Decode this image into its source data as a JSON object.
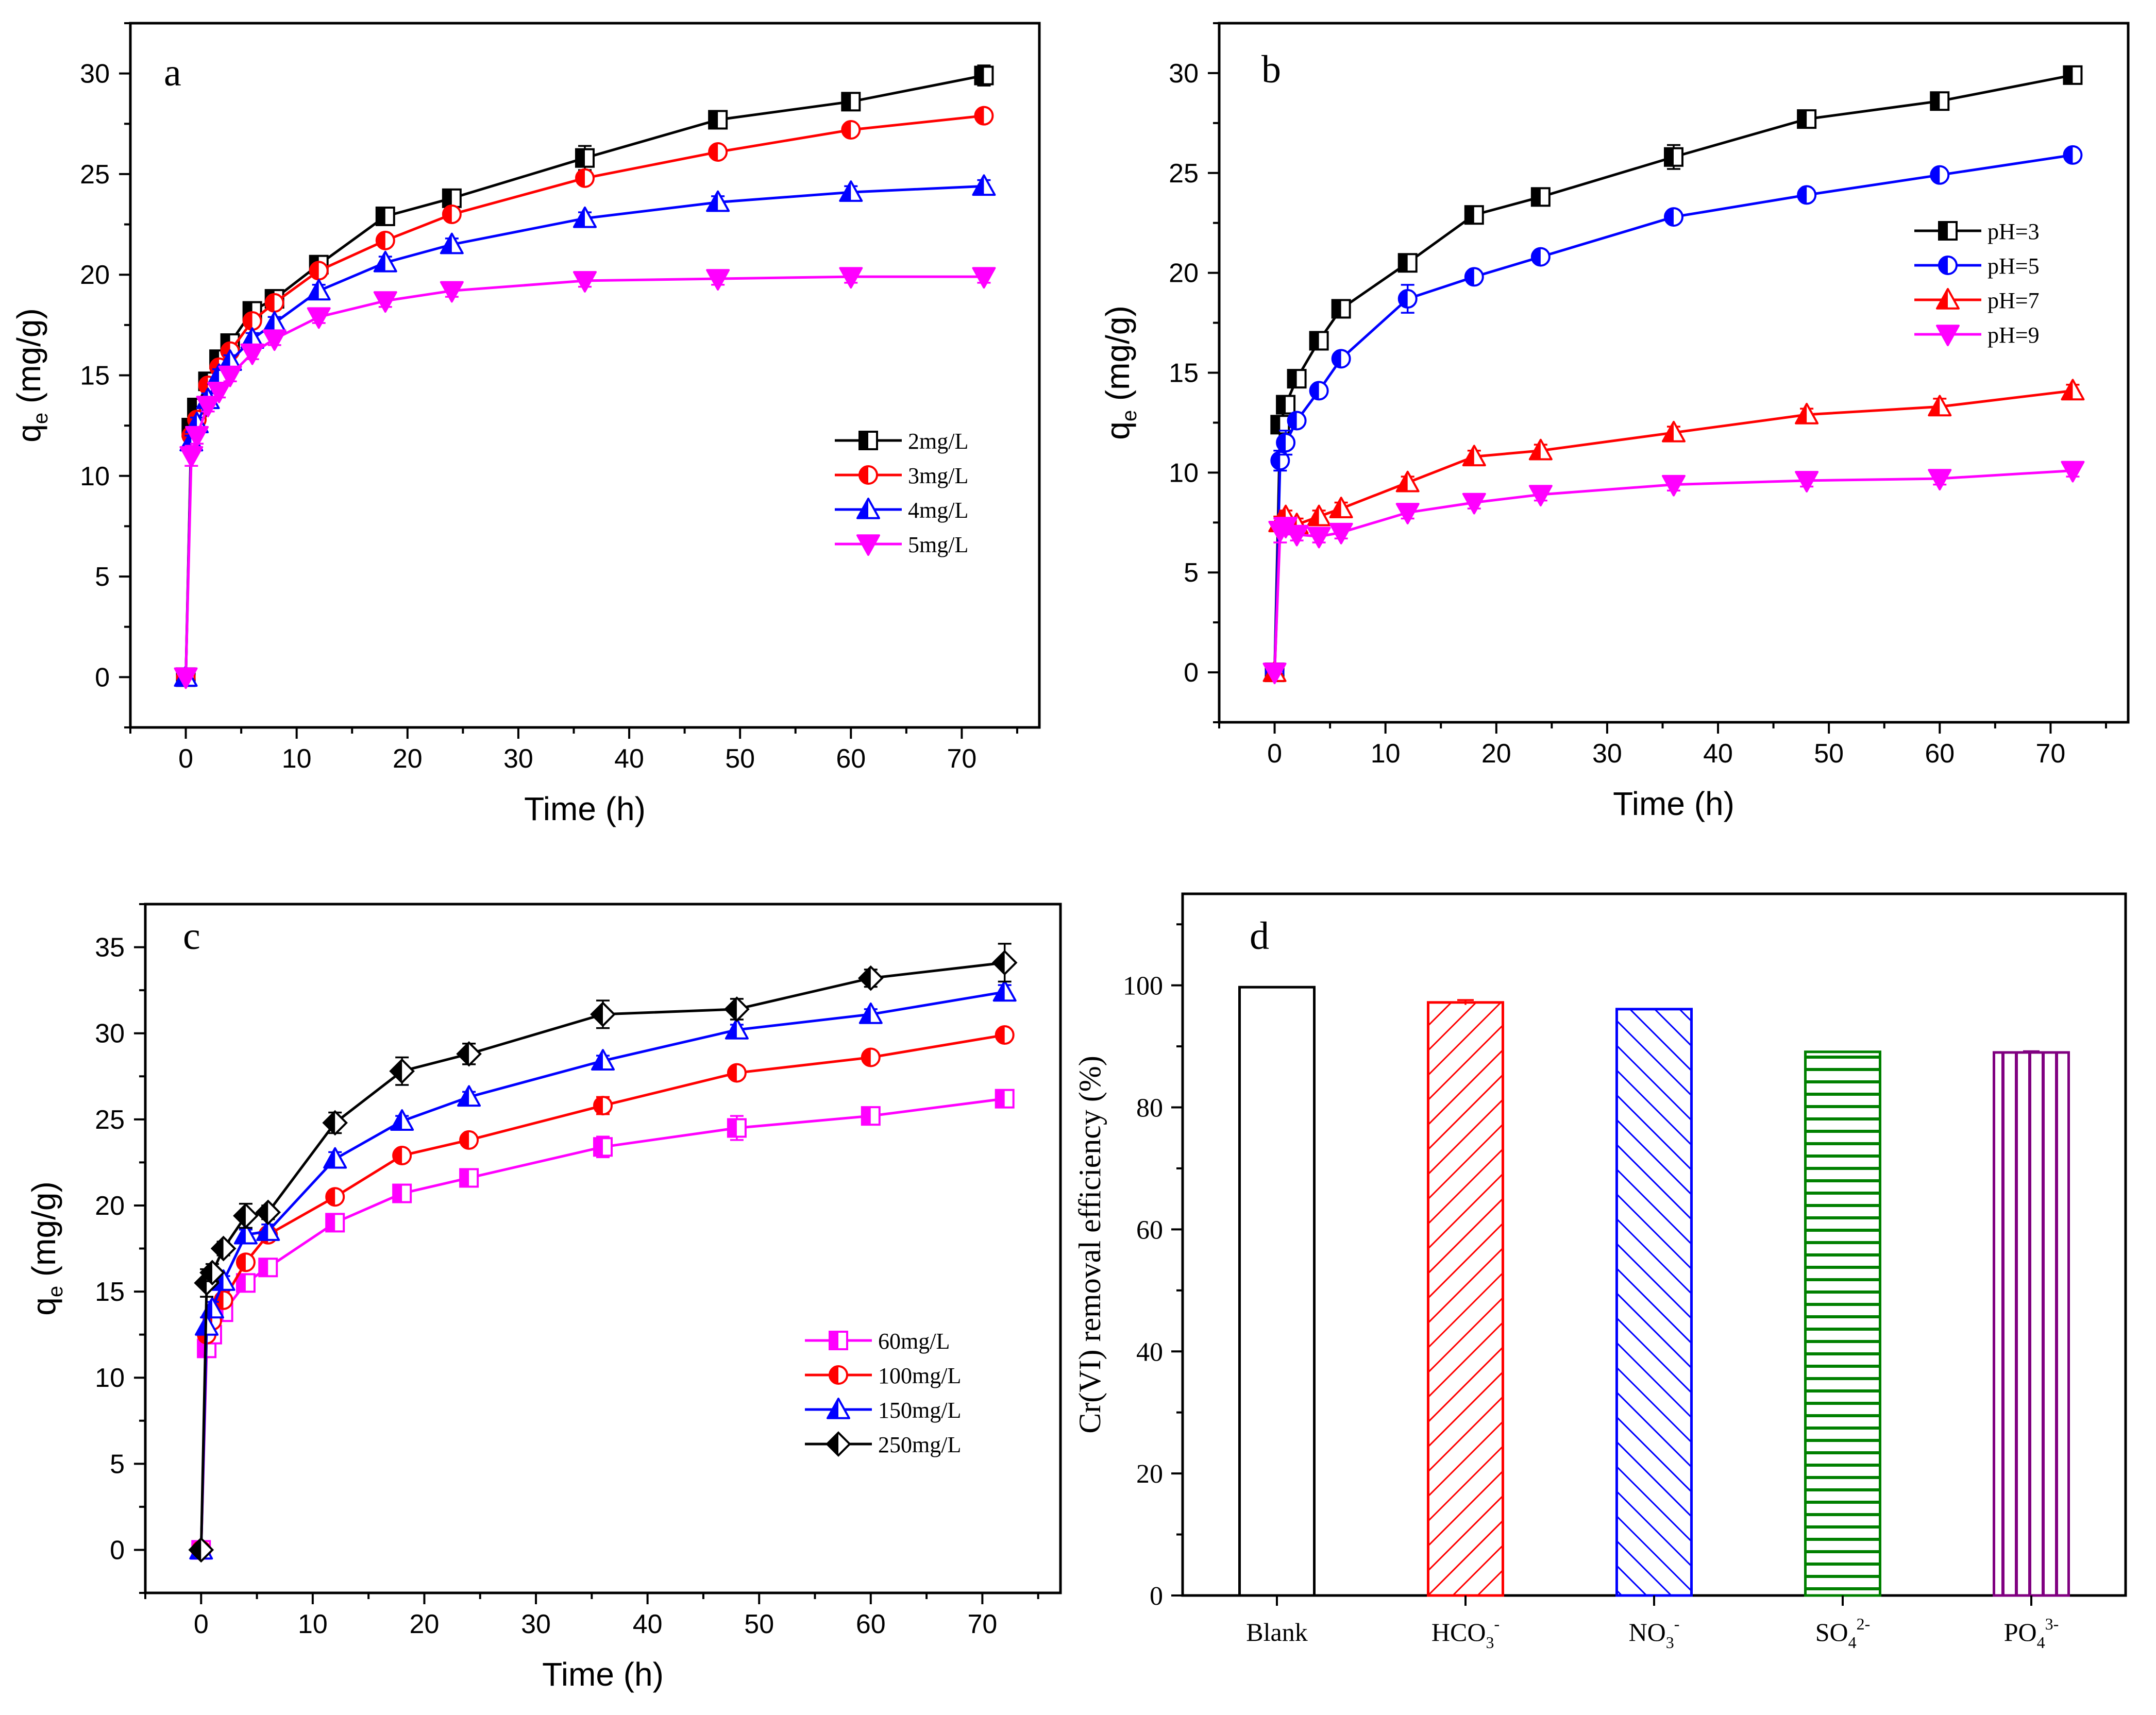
{
  "figure": {
    "panels": [
      "a",
      "b",
      "c",
      "d"
    ]
  },
  "chart_data": [
    {
      "panel": "a",
      "type": "line",
      "xlabel": "Time (h)",
      "ylabel": "q",
      "ylabel_sub": "e",
      "ylabel_unit": " (mg/g)",
      "xlim": [
        -5,
        77
      ],
      "ylim": [
        -2.5,
        32.5
      ],
      "xticks": [
        0,
        10,
        20,
        30,
        40,
        50,
        60,
        70
      ],
      "yticks": [
        0,
        5,
        10,
        15,
        20,
        25,
        30
      ],
      "legend_position": "middle-right",
      "x": [
        0,
        0.5,
        1,
        2,
        3,
        4,
        6,
        8,
        12,
        18,
        24,
        36,
        48,
        60,
        72
      ],
      "series": [
        {
          "name": "2mg/L",
          "color": "#000000",
          "marker": "square-half",
          "values": [
            0,
            12.4,
            13.4,
            14.7,
            15.8,
            16.6,
            18.2,
            18.8,
            20.5,
            22.9,
            23.8,
            25.8,
            27.7,
            28.6,
            29.9
          ],
          "errors": [
            0,
            0.3,
            0.3,
            0.3,
            0.3,
            0.3,
            0.3,
            0.3,
            0.3,
            0.3,
            0.4,
            0.6,
            0.3,
            0.3,
            0.5
          ]
        },
        {
          "name": "3mg/L",
          "color": "#ff0000",
          "marker": "circle-half",
          "values": [
            0,
            12.0,
            12.8,
            14.5,
            15.4,
            16.2,
            17.7,
            18.6,
            20.2,
            21.7,
            23.0,
            24.8,
            26.1,
            27.2,
            27.9
          ],
          "errors": [
            0,
            0.3,
            0.3,
            0.3,
            0.3,
            0.3,
            0.3,
            0.3,
            0.3,
            0.3,
            0.3,
            0.3,
            0.3,
            0.3,
            0.3
          ]
        },
        {
          "name": "4mg/L",
          "color": "#0000ff",
          "marker": "triangle-up",
          "values": [
            0,
            11.7,
            12.6,
            13.8,
            15.0,
            15.7,
            16.8,
            17.6,
            19.2,
            20.6,
            21.5,
            22.8,
            23.6,
            24.1,
            24.4
          ],
          "errors": [
            0,
            0.3,
            0.3,
            0.3,
            0.3,
            0.3,
            0.3,
            0.3,
            0.3,
            0.3,
            0.3,
            0.3,
            0.3,
            0.3,
            0.3
          ]
        },
        {
          "name": "5mg/L",
          "color": "#ff00ff",
          "marker": "triangle-down",
          "values": [
            0,
            11.0,
            12.0,
            13.5,
            14.2,
            15.0,
            16.1,
            16.8,
            17.9,
            18.7,
            19.2,
            19.7,
            19.8,
            19.9,
            19.9
          ],
          "errors": [
            0,
            0.5,
            0.4,
            0.3,
            0.3,
            0.3,
            0.3,
            0.3,
            0.3,
            0.3,
            0.3,
            0.3,
            0.3,
            0.3,
            0.3
          ]
        }
      ]
    },
    {
      "panel": "b",
      "type": "line",
      "xlabel": "Time (h)",
      "ylabel": "q",
      "ylabel_sub": "e",
      "ylabel_unit": " (mg/g)",
      "xlim": [
        -5,
        77
      ],
      "ylim": [
        -2.5,
        32.5
      ],
      "xticks": [
        0,
        10,
        20,
        30,
        40,
        50,
        60,
        70
      ],
      "yticks": [
        0,
        5,
        10,
        15,
        20,
        25,
        30
      ],
      "legend_position": "upper-right",
      "x": [
        0,
        0.5,
        1,
        2,
        4,
        6,
        12,
        18,
        24,
        36,
        48,
        60,
        72
      ],
      "series": [
        {
          "name": "pH=3",
          "color": "#000000",
          "marker": "square-half",
          "values": [
            0,
            12.4,
            13.4,
            14.7,
            16.6,
            18.2,
            20.5,
            22.9,
            23.8,
            25.8,
            27.7,
            28.6,
            29.9
          ],
          "errors": [
            0,
            0.3,
            0.3,
            0.3,
            0.3,
            0.3,
            0.3,
            0.3,
            0.3,
            0.6,
            0.3,
            0.3,
            0.4
          ]
        },
        {
          "name": "pH=5",
          "color": "#0000ff",
          "marker": "circle-half",
          "values": [
            0,
            10.6,
            11.5,
            12.6,
            14.1,
            15.7,
            18.7,
            19.8,
            20.8,
            22.8,
            23.9,
            24.9,
            25.9
          ],
          "errors": [
            0,
            0.5,
            0.6,
            0.3,
            0.3,
            0.3,
            0.7,
            0.3,
            0.3,
            0.3,
            0.3,
            0.3,
            0.3
          ]
        },
        {
          "name": "pH=7",
          "color": "#ff0000",
          "marker": "triangle-up",
          "values": [
            0,
            7.5,
            7.8,
            7.4,
            7.8,
            8.2,
            9.5,
            10.8,
            11.1,
            12.0,
            12.9,
            13.3,
            14.1
          ],
          "errors": [
            0,
            0.3,
            0.3,
            0.3,
            0.3,
            0.3,
            0.3,
            0.3,
            0.3,
            0.3,
            0.3,
            0.4,
            0.3
          ]
        },
        {
          "name": "pH=9",
          "color": "#ff00ff",
          "marker": "triangle-down",
          "values": [
            0,
            7.1,
            7.3,
            6.9,
            6.8,
            7.0,
            8.0,
            8.5,
            8.9,
            9.4,
            9.6,
            9.7,
            10.1
          ],
          "errors": [
            0,
            0.6,
            0.4,
            0.3,
            0.3,
            0.3,
            0.3,
            0.3,
            0.3,
            0.3,
            0.3,
            0.3,
            0.3
          ]
        }
      ]
    },
    {
      "panel": "c",
      "type": "line",
      "xlabel": "Time (h)",
      "ylabel": "q",
      "ylabel_sub": "e",
      "ylabel_unit": " (mg/g)",
      "xlim": [
        -5,
        77
      ],
      "ylim": [
        -2.5,
        37.5
      ],
      "xticks": [
        0,
        10,
        20,
        30,
        40,
        50,
        60,
        70
      ],
      "yticks": [
        0,
        5,
        10,
        15,
        20,
        25,
        30,
        35
      ],
      "legend_position": "lower-right",
      "x": [
        0,
        0.5,
        1,
        2,
        4,
        6,
        12,
        18,
        24,
        36,
        48,
        60,
        72
      ],
      "series": [
        {
          "name": "60mg/L",
          "color": "#ff00ff",
          "marker": "square-half",
          "values": [
            0,
            11.7,
            12.5,
            13.8,
            15.5,
            16.4,
            19.0,
            20.7,
            21.6,
            23.4,
            24.5,
            25.2,
            26.2
          ],
          "errors": [
            0,
            0.3,
            0.3,
            0.3,
            0.4,
            0.3,
            0.4,
            0.5,
            0.5,
            0.6,
            0.7,
            0.5,
            0.4
          ]
        },
        {
          "name": "100mg/L",
          "color": "#ff0000",
          "marker": "circle-half",
          "values": [
            0,
            12.5,
            13.3,
            14.5,
            16.7,
            18.3,
            20.5,
            22.9,
            23.8,
            25.8,
            27.7,
            28.6,
            29.9
          ],
          "errors": [
            0,
            0.3,
            0.3,
            0.3,
            0.3,
            0.3,
            0.3,
            0.3,
            0.3,
            0.5,
            0.3,
            0.3,
            0.3
          ]
        },
        {
          "name": "150mg/L",
          "color": "#0000ff",
          "marker": "triangle-up",
          "values": [
            0,
            13.0,
            14.0,
            15.6,
            18.3,
            18.5,
            22.7,
            24.9,
            26.3,
            28.4,
            30.2,
            31.1,
            32.4
          ],
          "errors": [
            0,
            0.5,
            0.4,
            0.3,
            0.3,
            0.4,
            0.4,
            0.3,
            0.3,
            0.3,
            0.3,
            0.3,
            0.4
          ]
        },
        {
          "name": "250mg/L",
          "color": "#000000",
          "marker": "diamond-half",
          "values": [
            0,
            15.5,
            16.1,
            17.5,
            19.4,
            19.6,
            24.8,
            27.8,
            28.8,
            31.1,
            31.4,
            33.2,
            34.1
          ],
          "errors": [
            0,
            0.8,
            0.5,
            0.4,
            0.7,
            0.4,
            0.6,
            0.8,
            0.6,
            0.8,
            0.6,
            0.5,
            1.1
          ]
        }
      ]
    },
    {
      "panel": "d",
      "type": "bar",
      "ylabel": "Cr(VI) removal efficiency (%)",
      "ylim": [
        0,
        115
      ],
      "yticks": [
        0,
        20,
        40,
        60,
        80,
        100
      ],
      "categories": [
        {
          "base": "Blank",
          "sub": "",
          "sup": ""
        },
        {
          "base": "HCO",
          "sub": "3",
          "sup": "-"
        },
        {
          "base": "NO",
          "sub": "3",
          "sup": "-"
        },
        {
          "base": "SO",
          "sub": "4",
          "sup": "2-"
        },
        {
          "base": "PO",
          "sub": "4",
          "sup": "3-"
        }
      ],
      "values": [
        99.7,
        97.2,
        96.1,
        89.1,
        89.0
      ],
      "errors": [
        0,
        0.4,
        0,
        0,
        0.2
      ],
      "colors": [
        "#000000",
        "#ff0000",
        "#0000ff",
        "#008000",
        "#800080"
      ],
      "patterns": [
        "none",
        "diag-right",
        "diag-left",
        "horizontal",
        "vertical"
      ]
    }
  ]
}
